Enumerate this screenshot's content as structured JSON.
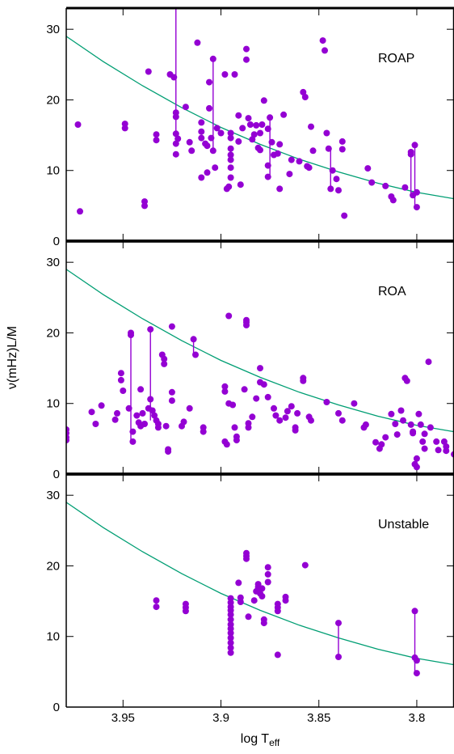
{
  "chart_data": {
    "type": "scatter",
    "xlabel": "log T",
    "xlabel_sub": "eff",
    "ylabel": "ν(mHz)L/M",
    "xlim": [
      3.979,
      3.781
    ],
    "ylim": [
      0,
      33
    ],
    "x_ticks": [
      3.95,
      3.9,
      3.85,
      3.8
    ],
    "x_tick_labels": [
      "3.95",
      "3.9",
      "3.85",
      "3.8"
    ],
    "y_ticks": [
      0,
      10,
      20,
      30
    ],
    "y_tick_labels": [
      "0",
      "10",
      "20",
      "30"
    ],
    "colors": {
      "points": "#9400d3",
      "curve": "#009e73",
      "axes": "#000000"
    },
    "curve": {
      "x": [
        3.979,
        3.96,
        3.94,
        3.92,
        3.9,
        3.88,
        3.86,
        3.84,
        3.82,
        3.8,
        3.781
      ],
      "y": [
        29.0,
        25.4,
        22.0,
        18.9,
        16.1,
        13.7,
        11.6,
        9.8,
        8.2,
        6.9,
        6.0
      ]
    },
    "panels": [
      {
        "label": "ROAP",
        "points": [
          [
            3.973,
            16.5
          ],
          [
            3.972,
            4.2
          ],
          [
            3.949,
            16.0
          ],
          [
            3.949,
            16.6
          ],
          [
            3.939,
            5.0
          ],
          [
            3.939,
            5.6
          ],
          [
            3.937,
            24.0
          ],
          [
            3.933,
            14.3
          ],
          [
            3.933,
            15.1
          ],
          [
            3.926,
            23.6
          ],
          [
            3.924,
            23.2
          ],
          [
            3.923,
            18.2
          ],
          [
            3.923,
            17.6
          ],
          [
            3.923,
            15.2
          ],
          [
            3.923,
            13.8
          ],
          [
            3.923,
            12.3
          ],
          [
            3.922,
            14.5
          ],
          [
            3.918,
            19.0
          ],
          [
            3.916,
            14.0
          ],
          [
            3.915,
            12.8
          ],
          [
            3.912,
            28.1
          ],
          [
            3.91,
            16.8
          ],
          [
            3.91,
            15.5
          ],
          [
            3.91,
            14.6
          ],
          [
            3.91,
            9.0
          ],
          [
            3.908,
            13.8
          ],
          [
            3.907,
            13.5
          ],
          [
            3.907,
            9.7
          ],
          [
            3.906,
            22.5
          ],
          [
            3.906,
            18.8
          ],
          [
            3.905,
            14.6
          ],
          [
            3.904,
            25.8
          ],
          [
            3.904,
            12.8
          ],
          [
            3.903,
            10.4
          ],
          [
            3.902,
            16.0
          ],
          [
            3.9,
            15.3
          ],
          [
            3.898,
            23.6
          ],
          [
            3.897,
            7.4
          ],
          [
            3.896,
            7.7
          ],
          [
            3.895,
            14.6
          ],
          [
            3.895,
            15.3
          ],
          [
            3.895,
            13.1
          ],
          [
            3.895,
            12.2
          ],
          [
            3.895,
            11.5
          ],
          [
            3.895,
            10.4
          ],
          [
            3.895,
            9.0
          ],
          [
            3.893,
            23.6
          ],
          [
            3.891,
            17.8
          ],
          [
            3.891,
            14.1
          ],
          [
            3.89,
            8.0
          ],
          [
            3.889,
            16.0
          ],
          [
            3.887,
            27.2
          ],
          [
            3.887,
            25.7
          ],
          [
            3.886,
            17.4
          ],
          [
            3.885,
            16.5
          ],
          [
            3.884,
            14.4
          ],
          [
            3.883,
            15.1
          ],
          [
            3.882,
            16.4
          ],
          [
            3.881,
            13.2
          ],
          [
            3.88,
            15.3
          ],
          [
            3.88,
            12.9
          ],
          [
            3.879,
            16.5
          ],
          [
            3.878,
            19.9
          ],
          [
            3.876,
            15.9
          ],
          [
            3.876,
            10.7
          ],
          [
            3.876,
            9.1
          ],
          [
            3.875,
            17.5
          ],
          [
            3.874,
            14.0
          ],
          [
            3.873,
            12.2
          ],
          [
            3.871,
            12.4
          ],
          [
            3.87,
            13.7
          ],
          [
            3.87,
            7.4
          ],
          [
            3.868,
            17.9
          ],
          [
            3.865,
            9.5
          ],
          [
            3.864,
            11.5
          ],
          [
            3.86,
            11.3
          ],
          [
            3.858,
            21.1
          ],
          [
            3.857,
            20.4
          ],
          [
            3.856,
            10.6
          ],
          [
            3.855,
            10.4
          ],
          [
            3.854,
            16.2
          ],
          [
            3.853,
            12.8
          ],
          [
            3.848,
            28.4
          ],
          [
            3.847,
            27.0
          ],
          [
            3.846,
            15.3
          ],
          [
            3.845,
            13.1
          ],
          [
            3.844,
            7.4
          ],
          [
            3.843,
            10.0
          ],
          [
            3.841,
            8.8
          ],
          [
            3.84,
            7.2
          ],
          [
            3.838,
            14.1
          ],
          [
            3.838,
            13.0
          ],
          [
            3.837,
            3.6
          ],
          [
            3.825,
            10.3
          ],
          [
            3.823,
            8.3
          ],
          [
            3.816,
            7.8
          ],
          [
            3.813,
            6.3
          ],
          [
            3.812,
            5.8
          ],
          [
            3.806,
            7.6
          ],
          [
            3.803,
            12.6
          ],
          [
            3.803,
            12.3
          ],
          [
            3.802,
            6.5
          ],
          [
            3.801,
            13.6
          ],
          [
            3.8,
            4.8
          ],
          [
            3.8,
            6.9
          ]
        ],
        "segments": [
          [
            3.923,
            33.0,
            3.923,
            14.5
          ],
          [
            3.904,
            25.8,
            3.904,
            12.8
          ],
          [
            3.875,
            17.5,
            3.875,
            8.8
          ],
          [
            3.844,
            13.1,
            3.844,
            7.4
          ],
          [
            3.803,
            12.6,
            3.803,
            6.5
          ],
          [
            3.801,
            13.6,
            3.801,
            4.8
          ]
        ]
      },
      {
        "label": "ROA",
        "points": [
          [
            3.979,
            6.3
          ],
          [
            3.979,
            5.8
          ],
          [
            3.979,
            5.2
          ],
          [
            3.979,
            4.8
          ],
          [
            3.966,
            8.8
          ],
          [
            3.964,
            7.1
          ],
          [
            3.961,
            9.7
          ],
          [
            3.954,
            7.7
          ],
          [
            3.953,
            8.6
          ],
          [
            3.951,
            14.3
          ],
          [
            3.951,
            13.3
          ],
          [
            3.95,
            11.8
          ],
          [
            3.947,
            9.3
          ],
          [
            3.946,
            20.0
          ],
          [
            3.946,
            19.7
          ],
          [
            3.945,
            6.0
          ],
          [
            3.945,
            4.6
          ],
          [
            3.943,
            8.3
          ],
          [
            3.942,
            7.3
          ],
          [
            3.941,
            12.0
          ],
          [
            3.941,
            6.8
          ],
          [
            3.94,
            8.6
          ],
          [
            3.939,
            7.1
          ],
          [
            3.937,
            9.3
          ],
          [
            3.936,
            20.5
          ],
          [
            3.936,
            10.6
          ],
          [
            3.935,
            9.0
          ],
          [
            3.934,
            8.3
          ],
          [
            3.933,
            7.6
          ],
          [
            3.932,
            7.1
          ],
          [
            3.932,
            6.6
          ],
          [
            3.93,
            16.9
          ],
          [
            3.929,
            16.3
          ],
          [
            3.929,
            15.6
          ],
          [
            3.928,
            6.8
          ],
          [
            3.927,
            3.5
          ],
          [
            3.927,
            3.2
          ],
          [
            3.925,
            11.6
          ],
          [
            3.925,
            10.4
          ],
          [
            3.925,
            20.9
          ],
          [
            3.92,
            6.8
          ],
          [
            3.919,
            7.4
          ],
          [
            3.916,
            9.3
          ],
          [
            3.914,
            19.1
          ],
          [
            3.913,
            16.9
          ],
          [
            3.909,
            6.6
          ],
          [
            3.909,
            6.0
          ],
          [
            3.898,
            12.4
          ],
          [
            3.898,
            11.7
          ],
          [
            3.898,
            4.6
          ],
          [
            3.897,
            4.2
          ],
          [
            3.896,
            22.4
          ],
          [
            3.896,
            10.0
          ],
          [
            3.894,
            9.8
          ],
          [
            3.893,
            6.6
          ],
          [
            3.892,
            5.3
          ],
          [
            3.892,
            4.8
          ],
          [
            3.888,
            12.0
          ],
          [
            3.887,
            21.8
          ],
          [
            3.887,
            21.5
          ],
          [
            3.887,
            21.1
          ],
          [
            3.886,
            7.2
          ],
          [
            3.886,
            6.6
          ],
          [
            3.884,
            8.1
          ],
          [
            3.882,
            10.7
          ],
          [
            3.88,
            15.0
          ],
          [
            3.88,
            13.0
          ],
          [
            3.878,
            12.7
          ],
          [
            3.876,
            10.9
          ],
          [
            3.873,
            9.3
          ],
          [
            3.872,
            8.3
          ],
          [
            3.87,
            7.6
          ],
          [
            3.867,
            8.0
          ],
          [
            3.866,
            8.9
          ],
          [
            3.864,
            9.6
          ],
          [
            3.862,
            6.6
          ],
          [
            3.862,
            6.2
          ],
          [
            3.861,
            8.6
          ],
          [
            3.858,
            13.6
          ],
          [
            3.858,
            13.2
          ],
          [
            3.855,
            8.1
          ],
          [
            3.854,
            7.6
          ],
          [
            3.846,
            10.2
          ],
          [
            3.84,
            8.6
          ],
          [
            3.838,
            7.6
          ],
          [
            3.832,
            10.0
          ],
          [
            3.827,
            6.6
          ],
          [
            3.826,
            7.0
          ],
          [
            3.821,
            4.5
          ],
          [
            3.819,
            3.6
          ],
          [
            3.818,
            4.2
          ],
          [
            3.816,
            5.2
          ],
          [
            3.813,
            8.5
          ],
          [
            3.811,
            7.1
          ],
          [
            3.81,
            5.6
          ],
          [
            3.808,
            9.0
          ],
          [
            3.807,
            7.6
          ],
          [
            3.806,
            13.6
          ],
          [
            3.805,
            13.2
          ],
          [
            3.803,
            7.0
          ],
          [
            3.802,
            6.0
          ],
          [
            3.802,
            5.8
          ],
          [
            3.801,
            1.4
          ],
          [
            3.8,
            2.2
          ],
          [
            3.8,
            1.0
          ],
          [
            3.799,
            8.5
          ],
          [
            3.798,
            7.0
          ],
          [
            3.797,
            4.6
          ],
          [
            3.796,
            3.6
          ],
          [
            3.796,
            5.7
          ],
          [
            3.794,
            15.9
          ],
          [
            3.793,
            6.6
          ],
          [
            3.79,
            4.6
          ],
          [
            3.789,
            3.4
          ],
          [
            3.786,
            4.6
          ],
          [
            3.785,
            3.9
          ],
          [
            3.785,
            3.3
          ],
          [
            3.781,
            2.8
          ]
        ],
        "segments": [
          [
            3.946,
            20.0,
            3.946,
            4.6
          ],
          [
            3.936,
            20.5,
            3.936,
            7.6
          ],
          [
            3.914,
            19.1,
            3.914,
            16.9
          ],
          [
            3.887,
            21.8,
            3.887,
            21.1
          ],
          [
            3.8,
            2.2,
            3.8,
            1.0
          ]
        ]
      },
      {
        "label": "Unstable",
        "points": [
          [
            3.933,
            15.1
          ],
          [
            3.933,
            14.2
          ],
          [
            3.918,
            14.6
          ],
          [
            3.918,
            14.1
          ],
          [
            3.918,
            13.6
          ],
          [
            3.895,
            15.4
          ],
          [
            3.895,
            14.8
          ],
          [
            3.895,
            14.2
          ],
          [
            3.895,
            13.7
          ],
          [
            3.895,
            13.1
          ],
          [
            3.895,
            12.4
          ],
          [
            3.895,
            11.7
          ],
          [
            3.895,
            11.1
          ],
          [
            3.895,
            10.5
          ],
          [
            3.895,
            9.8
          ],
          [
            3.895,
            9.1
          ],
          [
            3.895,
            8.4
          ],
          [
            3.895,
            7.7
          ],
          [
            3.891,
            17.6
          ],
          [
            3.89,
            15.5
          ],
          [
            3.89,
            14.9
          ],
          [
            3.887,
            21.8
          ],
          [
            3.887,
            21.4
          ],
          [
            3.887,
            21.0
          ],
          [
            3.886,
            12.8
          ],
          [
            3.883,
            15.1
          ],
          [
            3.882,
            16.4
          ],
          [
            3.881,
            17.4
          ],
          [
            3.881,
            17.0
          ],
          [
            3.88,
            16.7
          ],
          [
            3.88,
            16.1
          ],
          [
            3.879,
            15.7
          ],
          [
            3.879,
            16.8
          ],
          [
            3.878,
            12.4
          ],
          [
            3.878,
            11.9
          ],
          [
            3.876,
            19.8
          ],
          [
            3.876,
            18.8
          ],
          [
            3.876,
            17.7
          ],
          [
            3.871,
            14.6
          ],
          [
            3.871,
            14.1
          ],
          [
            3.871,
            13.6
          ],
          [
            3.871,
            7.4
          ],
          [
            3.867,
            15.6
          ],
          [
            3.867,
            15.1
          ],
          [
            3.857,
            20.1
          ],
          [
            3.84,
            11.9
          ],
          [
            3.84,
            7.1
          ],
          [
            3.801,
            13.6
          ],
          [
            3.801,
            7.0
          ],
          [
            3.8,
            6.6
          ],
          [
            3.8,
            4.8
          ]
        ],
        "segments": [
          [
            3.895,
            15.4,
            3.895,
            7.7
          ],
          [
            3.84,
            11.9,
            3.84,
            7.1
          ],
          [
            3.801,
            13.6,
            3.801,
            4.8
          ]
        ]
      }
    ]
  }
}
